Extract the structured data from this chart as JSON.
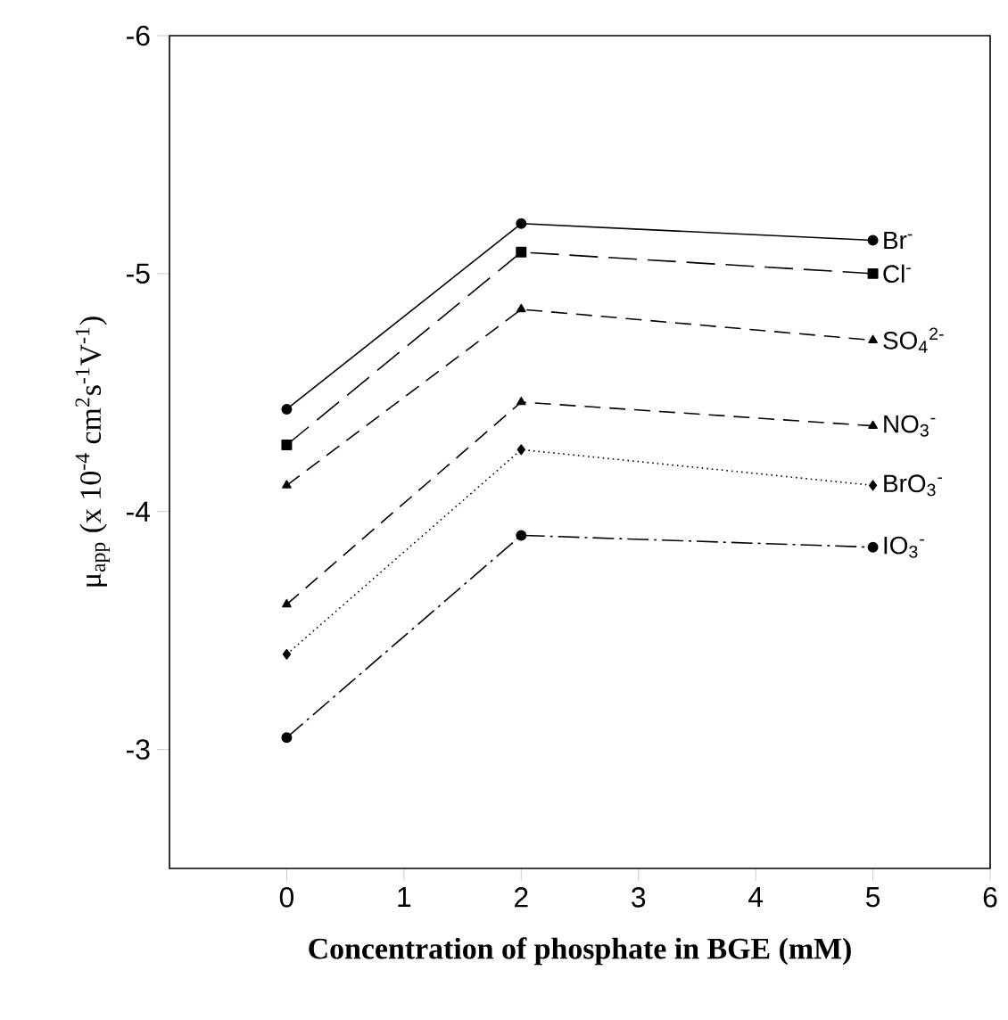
{
  "chart_data": {
    "type": "line",
    "xlabel": "**Concentration of phosphate in BGE (mM)**",
    "ylabel": "μ$_{app}$ (x 10$^{-4}$ cm$^{2}$s$^{-1}$V$^{-1}$)",
    "x": [
      0,
      2,
      5
    ],
    "xlim": [
      -1,
      6
    ],
    "xticks": [
      0,
      1,
      2,
      3,
      4,
      5,
      6
    ],
    "ylim": [
      -2.5,
      -6
    ],
    "yticks": [
      -3,
      -4,
      -5,
      -6
    ],
    "grid": false,
    "legend": false,
    "series": [
      {
        "name": "Br$^{-}$",
        "color": "#000000",
        "marker": "circle",
        "line_style": "solid",
        "values": [
          -4.43,
          -5.21,
          -5.14
        ]
      },
      {
        "name": "Cl$^{-}$",
        "color": "#000000",
        "marker": "square",
        "line_style": "longdashed",
        "values": [
          -4.28,
          -5.09,
          -5.0
        ]
      },
      {
        "name": "SO$_{4}$$^{2-}$",
        "color": "#000000",
        "marker": "triangle",
        "line_style": "dashed",
        "values": [
          -4.11,
          -4.85,
          -4.72
        ]
      },
      {
        "name": "NO$_{3}$$^{-}$",
        "color": "#000000",
        "marker": "triangle-down",
        "line_style": "dashed",
        "values": [
          -3.61,
          -4.46,
          -4.36
        ]
      },
      {
        "name": "BrO$_{3}$$^{-}$",
        "color": "#000000",
        "marker": "diamond",
        "line_style": "dotted",
        "values": [
          -3.4,
          -4.26,
          -4.11
        ]
      },
      {
        "name": "IO$_{3}$$^{-}$",
        "color": "#000000",
        "marker": "circle",
        "line_style": "dashdot",
        "values": [
          -3.05,
          -3.9,
          -3.85
        ]
      }
    ]
  }
}
